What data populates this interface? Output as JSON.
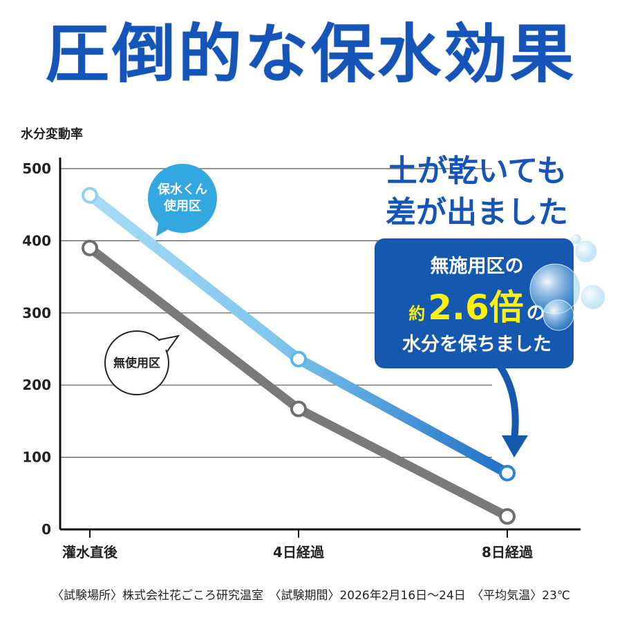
{
  "title": "圧倒的な保水効果",
  "chart_data": {
    "type": "line",
    "ylabel": "水分変動率",
    "ylim": [
      0,
      500
    ],
    "yticks": [
      "0",
      "100",
      "200",
      "300",
      "400",
      "500"
    ],
    "categories": [
      "灌水直後",
      "4日経過",
      "8日経過"
    ],
    "series": [
      {
        "name": "保水くん使用区",
        "values": [
          463,
          236,
          78
        ]
      },
      {
        "name": "無使用区",
        "values": [
          390,
          167,
          18
        ]
      }
    ],
    "grid": true
  },
  "bubbles": {
    "treated": [
      "保水くん",
      "使用区"
    ],
    "untreated": "無使用区"
  },
  "headline": [
    "土が乾いても",
    "差が出ました"
  ],
  "callout": {
    "line1": "無施用区の",
    "prefix": "約",
    "number": "2.6倍",
    "suffix": "の",
    "line3": "水分を保ちました"
  },
  "footer": "〈試験場所〉株式会社花ごころ研究温室　〈試験期間〉2026年2月16日〜24日　〈平均気温〉23℃",
  "colors": {
    "title": "#1554b8",
    "treated_line_start": "#a9dcf5",
    "treated_line_end": "#1f6fc6",
    "untreated_line": "#7a7a7a",
    "callout_bg": "#1458b0",
    "callout_highlight": "#fff200",
    "bubble_blue": "#33a7e0"
  }
}
